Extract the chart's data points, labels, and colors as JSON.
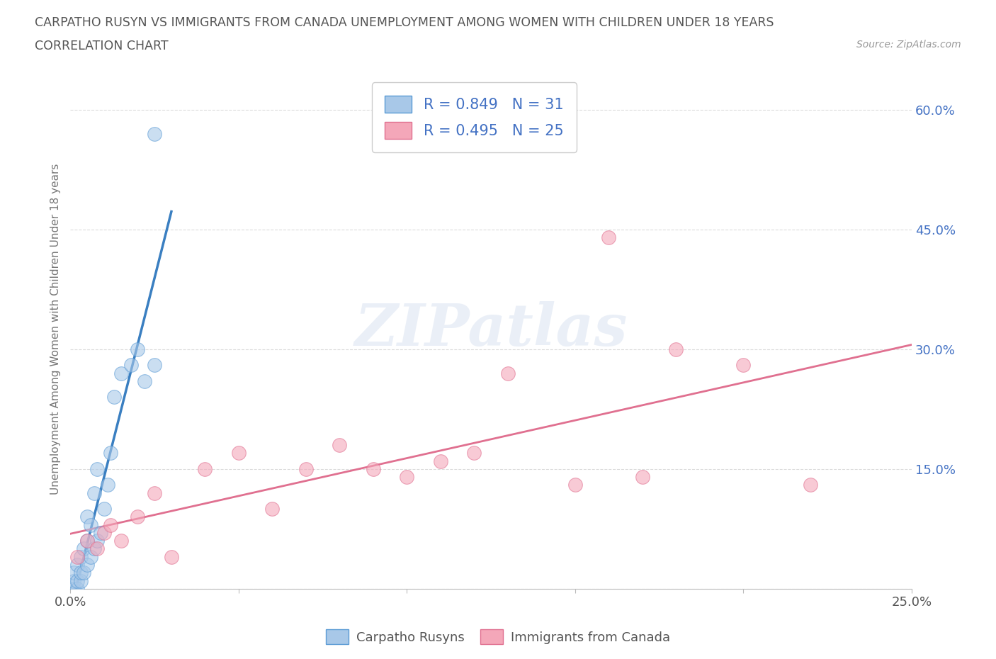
{
  "title_line1": "CARPATHO RUSYN VS IMMIGRANTS FROM CANADA UNEMPLOYMENT AMONG WOMEN WITH CHILDREN UNDER 18 YEARS",
  "title_line2": "CORRELATION CHART",
  "source_text": "Source: ZipAtlas.com",
  "ylabel": "Unemployment Among Women with Children Under 18 years",
  "watermark_text": "ZIPatlas",
  "xlim": [
    0.0,
    0.25
  ],
  "ylim": [
    0.0,
    0.65
  ],
  "xtick_positions": [
    0.0,
    0.05,
    0.1,
    0.15,
    0.2,
    0.25
  ],
  "xtick_labels": [
    "0.0%",
    "",
    "",
    "",
    "",
    "25.0%"
  ],
  "ytick_positions": [
    0.0,
    0.15,
    0.3,
    0.45,
    0.6
  ],
  "ytick_labels": [
    "",
    "15.0%",
    "30.0%",
    "45.0%",
    "60.0%"
  ],
  "blue_fill": "#a8c8e8",
  "blue_edge": "#5b9bd5",
  "pink_fill": "#f4a7b9",
  "pink_edge": "#e07090",
  "blue_line_color": "#3a7fc1",
  "pink_line_color": "#e07090",
  "title_color": "#555555",
  "source_color": "#999999",
  "ylabel_color": "#777777",
  "tick_label_color": "#4472c4",
  "xtick_color": "#555555",
  "grid_color": "#cccccc",
  "background": "#ffffff",
  "legend_text_color": "#4472c4",
  "legend_label_color": "#333333",
  "blue_x": [
    0.001,
    0.001,
    0.001,
    0.002,
    0.002,
    0.002,
    0.003,
    0.003,
    0.003,
    0.004,
    0.004,
    0.005,
    0.005,
    0.005,
    0.006,
    0.006,
    0.007,
    0.007,
    0.008,
    0.008,
    0.009,
    0.01,
    0.011,
    0.012,
    0.013,
    0.015,
    0.018,
    0.02,
    0.022,
    0.025,
    0.025
  ],
  "blue_y": [
    0.0,
    0.01,
    0.02,
    0.0,
    0.01,
    0.03,
    0.01,
    0.02,
    0.04,
    0.02,
    0.05,
    0.03,
    0.06,
    0.09,
    0.04,
    0.08,
    0.05,
    0.12,
    0.06,
    0.15,
    0.07,
    0.1,
    0.13,
    0.17,
    0.24,
    0.27,
    0.28,
    0.3,
    0.26,
    0.28,
    0.57
  ],
  "pink_x": [
    0.002,
    0.005,
    0.008,
    0.01,
    0.012,
    0.015,
    0.02,
    0.025,
    0.03,
    0.04,
    0.05,
    0.06,
    0.07,
    0.08,
    0.09,
    0.1,
    0.11,
    0.12,
    0.13,
    0.15,
    0.16,
    0.17,
    0.18,
    0.2,
    0.22
  ],
  "pink_y": [
    0.04,
    0.06,
    0.05,
    0.07,
    0.08,
    0.06,
    0.09,
    0.12,
    0.04,
    0.15,
    0.17,
    0.1,
    0.15,
    0.18,
    0.15,
    0.14,
    0.16,
    0.17,
    0.27,
    0.13,
    0.44,
    0.14,
    0.3,
    0.28,
    0.13
  ],
  "blue_line_x": [
    -0.01,
    0.03
  ],
  "pink_line_x": [
    0.0,
    0.25
  ]
}
